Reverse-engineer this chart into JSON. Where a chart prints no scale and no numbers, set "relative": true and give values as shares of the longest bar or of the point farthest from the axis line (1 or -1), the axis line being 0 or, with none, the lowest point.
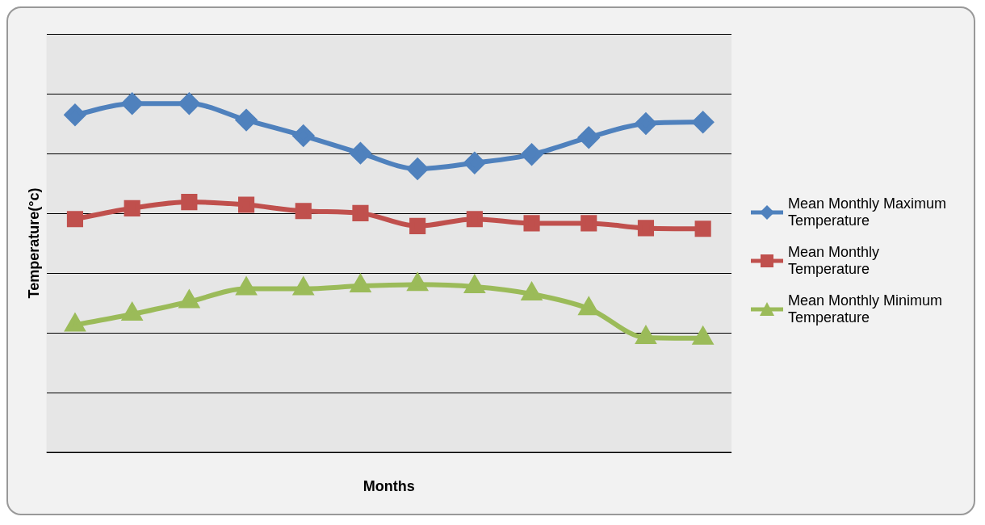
{
  "chart_data": {
    "type": "line",
    "xlabel": "Months",
    "ylabel": "Temperature(°c)",
    "relative": true,
    "grid": "y",
    "legend": "right",
    "categories": [
      null,
      null,
      null,
      null,
      null,
      null,
      null,
      null,
      null,
      null,
      null,
      null
    ],
    "series": [
      {
        "name": "Mean Monthly Maximum Temperature",
        "color": "#4f81bd",
        "marker": "diamond",
        "values": [
          0.968,
          1,
          1,
          0.953,
          0.908,
          0.858,
          0.813,
          0.83,
          0.854,
          0.903,
          0.943,
          0.947
        ]
      },
      {
        "name": "Mean Monthly Temperature",
        "color": "#c0504d",
        "marker": "square",
        "values": [
          0.669,
          0.7,
          0.718,
          0.71,
          0.692,
          0.686,
          0.649,
          0.669,
          0.657,
          0.657,
          0.643,
          0.641
        ]
      },
      {
        "name": "Mean Monthly Minimum Temperature",
        "color": "#9bbb59",
        "marker": "triangle",
        "values": [
          0.365,
          0.396,
          0.432,
          0.469,
          0.469,
          0.477,
          0.481,
          0.475,
          0.454,
          0.412,
          0.329,
          0.327
        ]
      }
    ]
  }
}
